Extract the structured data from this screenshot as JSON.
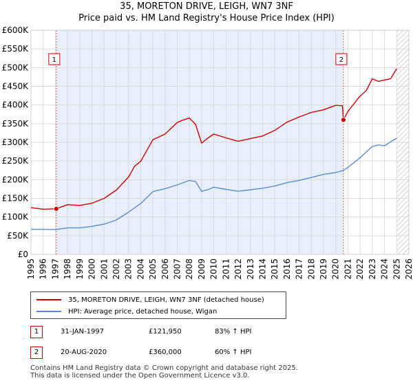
{
  "header": {
    "title_line1": "35, MORETON DRIVE, LEIGH, WN7 3NF",
    "title_line2": "Price paid vs. HM Land Registry's House Price Index (HPI)"
  },
  "chart_data": {
    "type": "line",
    "title": "35, MORETON DRIVE, LEIGH, WN7 3NF — Price paid vs. HM Land Registry's House Price Index (HPI)",
    "x_range": [
      1995,
      2026
    ],
    "ylim": [
      0,
      600000
    ],
    "y_ticks": [
      0,
      50000,
      100000,
      150000,
      200000,
      250000,
      300000,
      350000,
      400000,
      450000,
      500000,
      550000,
      600000
    ],
    "y_tick_labels": [
      "£0",
      "£50K",
      "£100K",
      "£150K",
      "£200K",
      "£250K",
      "£300K",
      "£350K",
      "£400K",
      "£450K",
      "£500K",
      "£550K",
      "£600K"
    ],
    "x_tick_labels": [
      "1995",
      "1996",
      "1997",
      "1998",
      "1999",
      "2000",
      "2001",
      "2002",
      "2003",
      "2004",
      "2005",
      "2006",
      "2007",
      "2008",
      "2009",
      "2010",
      "2011",
      "2012",
      "2013",
      "2014",
      "2015",
      "2016",
      "2017",
      "2018",
      "2019",
      "2020",
      "2021",
      "2022",
      "2023",
      "2024",
      "2025",
      "2026"
    ],
    "shade_between": [
      1997.08,
      2020.63
    ],
    "hatch_from": 2025.0,
    "grid": true,
    "series": [
      {
        "name": "35, MORETON DRIVE, LEIGH, WN7 3NF (detached house)",
        "color": "#cc0000",
        "x": [
          1995.0,
          1996.0,
          1997.08,
          1998.0,
          1999.0,
          2000.0,
          2001.0,
          2002.0,
          2003.0,
          2003.5,
          2004.0,
          2005.0,
          2006.0,
          2007.0,
          2007.5,
          2008.0,
          2008.5,
          2009.0,
          2009.5,
          2010.0,
          2011.0,
          2012.0,
          2013.0,
          2014.0,
          2015.0,
          2016.0,
          2017.0,
          2018.0,
          2019.0,
          2020.0,
          2020.55,
          2020.63,
          2021.0,
          2022.0,
          2022.5,
          2023.0,
          2023.5,
          2024.0,
          2024.5,
          2025.0
        ],
        "y": [
          125000,
          121000,
          121950,
          133000,
          131000,
          137000,
          150000,
          172000,
          207000,
          236000,
          249000,
          307000,
          322000,
          353000,
          360000,
          365000,
          348000,
          298000,
          311000,
          322000,
          312000,
          303000,
          310000,
          317000,
          332000,
          354000,
          368000,
          380000,
          387000,
          399000,
          398000,
          360000,
          383000,
          424000,
          438000,
          470000,
          463000,
          467000,
          470000,
          497000
        ]
      },
      {
        "name": "HPI: Average price, detached house, Wigan",
        "color": "#5b8ccc",
        "x": [
          1995.0,
          1996.0,
          1997.08,
          1998.0,
          1999.0,
          2000.0,
          2001.0,
          2002.0,
          2003.0,
          2004.0,
          2005.0,
          2006.0,
          2007.0,
          2008.0,
          2008.5,
          2009.0,
          2009.5,
          2010.0,
          2011.0,
          2012.0,
          2013.0,
          2014.0,
          2015.0,
          2016.0,
          2017.0,
          2018.0,
          2019.0,
          2020.0,
          2020.63,
          2021.0,
          2022.0,
          2023.0,
          2023.5,
          2024.0,
          2025.0
        ],
        "y": [
          67000,
          67000,
          66600,
          71000,
          71000,
          75000,
          81000,
          92000,
          113000,
          136000,
          168000,
          176000,
          186000,
          198000,
          195000,
          169000,
          173000,
          180000,
          174000,
          169000,
          173000,
          177000,
          183000,
          192000,
          198000,
          206000,
          214000,
          219000,
          225000,
          233000,
          259000,
          289000,
          293000,
          291000,
          311000
        ]
      }
    ],
    "markers": [
      {
        "label": "1",
        "x": 1997.08,
        "y": 121950
      },
      {
        "label": "2",
        "x": 2020.63,
        "y": 360000
      }
    ]
  },
  "legend": {
    "property_label": "35, MORETON DRIVE, LEIGH, WN7 3NF (detached house)",
    "hpi_label": "HPI: Average price, detached house, Wigan"
  },
  "transactions": [
    {
      "num": "1",
      "date": "31-JAN-1997",
      "price": "£121,950",
      "hpi": "83% ↑ HPI"
    },
    {
      "num": "2",
      "date": "20-AUG-2020",
      "price": "£360,000",
      "hpi": "60% ↑ HPI"
    }
  ],
  "footer": {
    "line1": "Contains HM Land Registry data © Crown copyright and database right 2025.",
    "line2": "This data is licensed under the Open Government Licence v3.0."
  },
  "colors": {
    "property": "#cc0000",
    "hpi": "#5b8ccc",
    "shade": "#e8eefa",
    "grid": "#d9d9d9",
    "marker_line": "#d06060"
  }
}
